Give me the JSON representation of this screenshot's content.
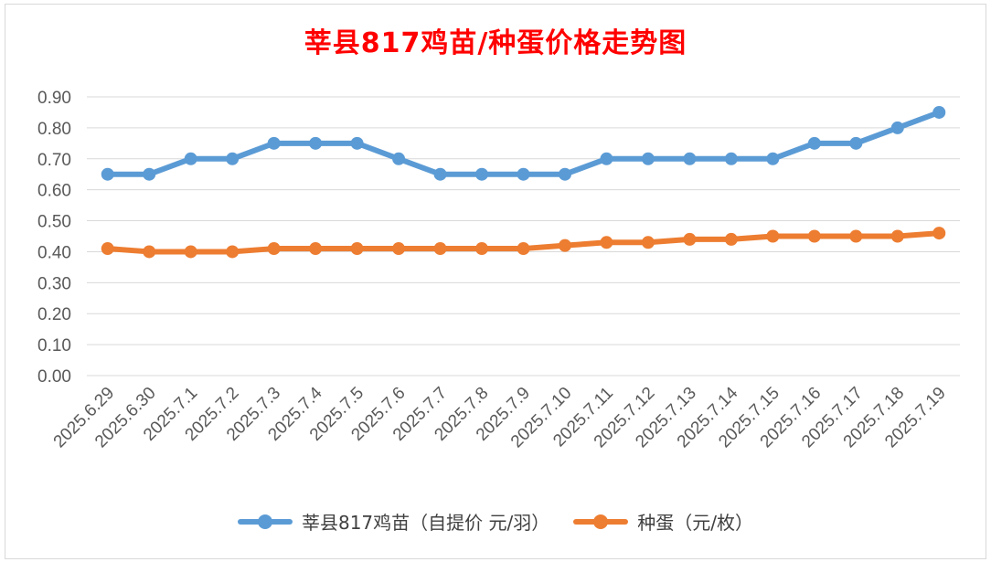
{
  "chart_data": {
    "type": "line",
    "title": "莘县817鸡苗/种蛋价格走势图",
    "xlabel": "",
    "ylabel": "",
    "ylim": [
      0,
      0.9
    ],
    "yticks": [
      "0.00",
      "0.10",
      "0.20",
      "0.30",
      "0.40",
      "0.50",
      "0.60",
      "0.70",
      "0.80",
      "0.90"
    ],
    "grid": true,
    "legend_position": "bottom",
    "categories": [
      "2025.6.29",
      "2025.6.30",
      "2025.7.1",
      "2025.7.2",
      "2025.7.3",
      "2025.7.4",
      "2025.7.5",
      "2025.7.6",
      "2025.7.7",
      "2025.7.8",
      "2025.7.9",
      "2025.7.10",
      "2025.7.11",
      "2025.7.12",
      "2025.7.13",
      "2025.7.14",
      "2025.7.15",
      "2025.7.16",
      "2025.7.17",
      "2025.7.18",
      "2025.7.19"
    ],
    "series": [
      {
        "name": "莘县817鸡苗（自提价 元/羽）",
        "color": "#5b9bd5",
        "values": [
          0.65,
          0.65,
          0.7,
          0.7,
          0.75,
          0.75,
          0.75,
          0.7,
          0.65,
          0.65,
          0.65,
          0.65,
          0.7,
          0.7,
          0.7,
          0.7,
          0.7,
          0.75,
          0.75,
          0.8,
          0.85
        ]
      },
      {
        "name": "种蛋（元/枚）",
        "color": "#ed7d31",
        "values": [
          0.41,
          0.4,
          0.4,
          0.4,
          0.41,
          0.41,
          0.41,
          0.41,
          0.41,
          0.41,
          0.41,
          0.42,
          0.43,
          0.43,
          0.44,
          0.44,
          0.45,
          0.45,
          0.45,
          0.45,
          0.46
        ]
      }
    ]
  }
}
